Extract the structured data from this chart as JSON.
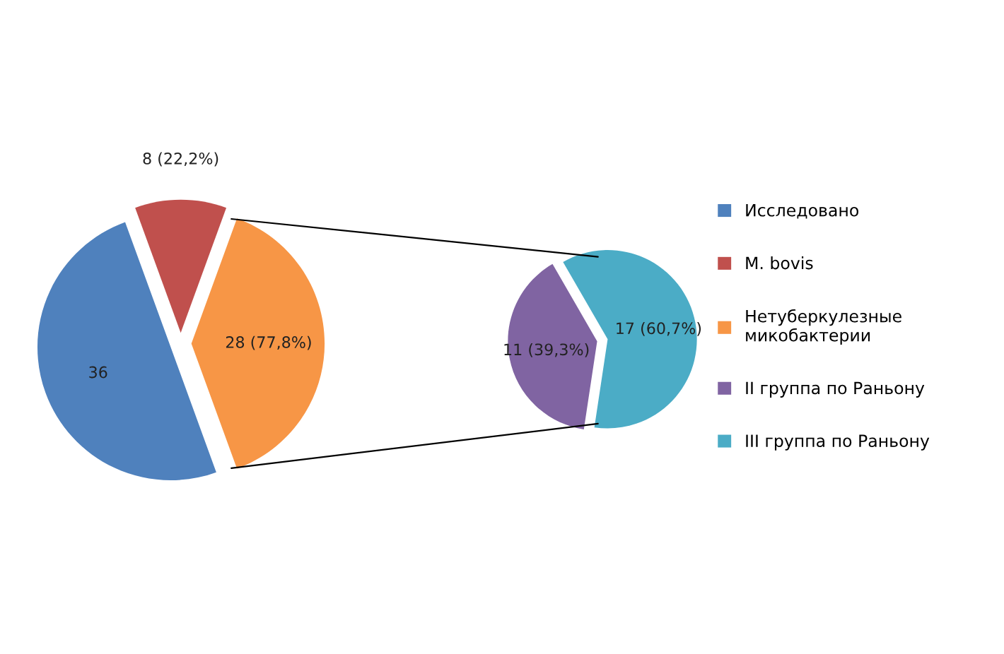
{
  "chart_data": [
    {
      "type": "pie",
      "categories": [
        "Исследовано",
        "M. bovis",
        "Нетуберкулезные микобактерии"
      ],
      "values": [
        36,
        8,
        28
      ],
      "colors": [
        "#4f81bd",
        "#c0504d",
        "#f79646"
      ],
      "value_labels": [
        "36",
        "8 (22,2%)",
        "28 (77,8%)"
      ],
      "legend": "right"
    },
    {
      "type": "pie",
      "categories": [
        "II группа по Раньону",
        "III группа по Раньону"
      ],
      "values": [
        11,
        17
      ],
      "colors": [
        "#8064a2",
        "#4bacc6"
      ],
      "value_labels": [
        "11 (39,3%)",
        "17 (60,7%)"
      ],
      "legend": "right"
    }
  ]
}
